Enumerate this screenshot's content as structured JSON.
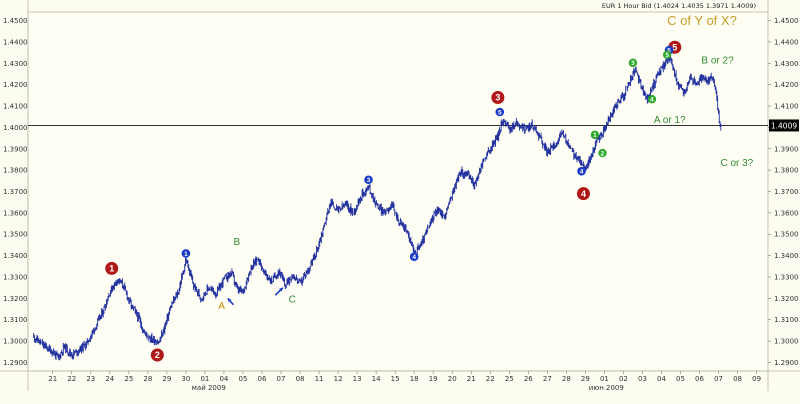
{
  "header": {
    "symbol": "EUR",
    "timeframe": "1 Hour",
    "side": "Bid",
    "ohlc": "(1.4024 1.4035 1.3971 1.4009)"
  },
  "chart_data": {
    "type": "candlestick-hourly",
    "ylim": [
      1.286,
      1.454
    ],
    "y_ticks": [
      "1.4500",
      "1.4400",
      "1.4300",
      "1.4200",
      "1.4100",
      "1.4000",
      "1.3900",
      "1.3800",
      "1.3700",
      "1.3600",
      "1.3500",
      "1.3400",
      "1.3300",
      "1.3200",
      "1.3100",
      "1.3000",
      "1.2900"
    ],
    "y_tick_values": [
      1.45,
      1.44,
      1.43,
      1.42,
      1.41,
      1.4,
      1.39,
      1.38,
      1.37,
      1.36,
      1.35,
      1.34,
      1.33,
      1.32,
      1.31,
      1.3,
      1.29
    ],
    "x_ticks": [
      "21",
      "22",
      "23",
      "24",
      "25",
      "28",
      "29",
      "30",
      "01",
      "04",
      "05",
      "06",
      "07",
      "08",
      "11",
      "12",
      "13",
      "14",
      "15",
      "18",
      "19",
      "20",
      "21",
      "22",
      "25",
      "26",
      "27",
      "28",
      "29",
      "01",
      "02",
      "03",
      "04",
      "05",
      "06",
      "07",
      "08",
      "09"
    ],
    "x_tick_days": [
      0,
      1,
      2,
      3,
      4,
      5,
      6,
      7,
      8,
      9,
      10,
      11,
      12,
      13,
      14,
      15,
      16,
      17,
      18,
      19,
      20,
      21,
      22,
      23,
      24,
      25,
      26,
      27,
      28,
      29,
      30,
      31,
      32,
      33,
      34,
      35,
      36,
      37
    ],
    "month_labels": [
      {
        "text": "май 2009",
        "day": 8.2
      },
      {
        "text": "июн 2009",
        "day": 29.1
      }
    ],
    "current_price": 1.4009,
    "current_price_label": "1.4009",
    "price_path": [
      [
        -1.0,
        1.302
      ],
      [
        -0.5,
        1.298
      ],
      [
        0.0,
        1.295
      ],
      [
        0.3,
        1.292
      ],
      [
        0.6,
        1.2975
      ],
      [
        1.0,
        1.2935
      ],
      [
        1.4,
        1.296
      ],
      [
        1.8,
        1.299
      ],
      [
        2.2,
        1.306
      ],
      [
        2.6,
        1.313
      ],
      [
        3.0,
        1.323
      ],
      [
        3.4,
        1.329
      ],
      [
        3.7,
        1.326
      ],
      [
        4.1,
        1.317
      ],
      [
        4.5,
        1.311
      ],
      [
        4.8,
        1.304
      ],
      [
        5.2,
        1.301
      ],
      [
        5.6,
        1.2995
      ],
      [
        5.9,
        1.307
      ],
      [
        6.2,
        1.316
      ],
      [
        6.6,
        1.323
      ],
      [
        7.0,
        1.338
      ],
      [
        7.4,
        1.326
      ],
      [
        7.8,
        1.32
      ],
      [
        8.2,
        1.325
      ],
      [
        8.6,
        1.322
      ],
      [
        9.0,
        1.329
      ],
      [
        9.4,
        1.332
      ],
      [
        9.7,
        1.324
      ],
      [
        10.0,
        1.323
      ],
      [
        10.4,
        1.334
      ],
      [
        10.8,
        1.339
      ],
      [
        11.1,
        1.332
      ],
      [
        11.5,
        1.328
      ],
      [
        11.9,
        1.333
      ],
      [
        12.2,
        1.326
      ],
      [
        12.6,
        1.331
      ],
      [
        13.0,
        1.327
      ],
      [
        13.4,
        1.333
      ],
      [
        13.8,
        1.34
      ],
      [
        14.2,
        1.352
      ],
      [
        14.6,
        1.365
      ],
      [
        15.0,
        1.361
      ],
      [
        15.4,
        1.364
      ],
      [
        15.8,
        1.36
      ],
      [
        16.2,
        1.368
      ],
      [
        16.6,
        1.372
      ],
      [
        17.0,
        1.364
      ],
      [
        17.4,
        1.36
      ],
      [
        17.8,
        1.364
      ],
      [
        18.2,
        1.356
      ],
      [
        18.6,
        1.352
      ],
      [
        19.0,
        1.341
      ],
      [
        19.4,
        1.346
      ],
      [
        19.8,
        1.354
      ],
      [
        20.2,
        1.362
      ],
      [
        20.6,
        1.358
      ],
      [
        21.0,
        1.369
      ],
      [
        21.4,
        1.379
      ],
      [
        21.8,
        1.378
      ],
      [
        22.2,
        1.373
      ],
      [
        22.6,
        1.384
      ],
      [
        23.0,
        1.39
      ],
      [
        23.4,
        1.396
      ],
      [
        23.7,
        1.404
      ],
      [
        24.0,
        1.399
      ],
      [
        24.4,
        1.402
      ],
      [
        24.8,
        1.399
      ],
      [
        25.2,
        1.401
      ],
      [
        25.6,
        1.396
      ],
      [
        26.0,
        1.388
      ],
      [
        26.4,
        1.392
      ],
      [
        26.8,
        1.397
      ],
      [
        27.2,
        1.39
      ],
      [
        27.6,
        1.385
      ],
      [
        28.0,
        1.381
      ],
      [
        28.3,
        1.386
      ],
      [
        28.6,
        1.394
      ],
      [
        28.9,
        1.397
      ],
      [
        29.2,
        1.403
      ],
      [
        29.6,
        1.41
      ],
      [
        30.0,
        1.415
      ],
      [
        30.3,
        1.421
      ],
      [
        30.6,
        1.427
      ],
      [
        30.9,
        1.42
      ],
      [
        31.2,
        1.413
      ],
      [
        31.5,
        1.418
      ],
      [
        31.8,
        1.425
      ],
      [
        32.1,
        1.429
      ],
      [
        32.4,
        1.433
      ],
      [
        32.6,
        1.428
      ],
      [
        32.9,
        1.419
      ],
      [
        33.2,
        1.416
      ],
      [
        33.5,
        1.424
      ],
      [
        33.8,
        1.42
      ],
      [
        34.1,
        1.423
      ],
      [
        34.4,
        1.421
      ],
      [
        34.7,
        1.424
      ],
      [
        34.9,
        1.413
      ],
      [
        35.0,
        1.406
      ],
      [
        35.1,
        1.398
      ],
      [
        35.15,
        1.4009
      ]
    ],
    "labels_red": [
      {
        "text": "1",
        "day": 3.1,
        "price": 1.334
      },
      {
        "text": "2",
        "day": 5.5,
        "price": 1.2935
      },
      {
        "text": "3",
        "day": 23.4,
        "price": 1.414
      },
      {
        "text": "4",
        "day": 27.9,
        "price": 1.369
      },
      {
        "text": "5",
        "day": 32.7,
        "price": 1.4375
      }
    ],
    "labels_blue": [
      {
        "text": "1",
        "day": 7.0,
        "price": 1.341
      },
      {
        "text": "3",
        "day": 16.6,
        "price": 1.3755
      },
      {
        "text": "4",
        "day": 19.0,
        "price": 1.3395
      },
      {
        "text": "5",
        "day": 23.5,
        "price": 1.4072
      },
      {
        "text": "4",
        "day": 27.8,
        "price": 1.3795
      },
      {
        "text": "5",
        "day": 32.4,
        "price": 1.4362
      }
    ],
    "labels_green": [
      {
        "text": "1",
        "day": 28.5,
        "price": 1.3965
      },
      {
        "text": "2",
        "day": 28.9,
        "price": 1.388
      },
      {
        "text": "3",
        "day": 30.5,
        "price": 1.4302
      },
      {
        "text": "4",
        "day": 31.5,
        "price": 1.4132
      },
      {
        "text": "5",
        "day": 32.3,
        "price": 1.434
      }
    ],
    "text_annotations": [
      {
        "text": "C of Y of X?",
        "day": 32.3,
        "price": 1.448,
        "color": "#c8a028",
        "size": 13
      },
      {
        "text": "B or 2?",
        "day": 34.1,
        "price": 1.43,
        "color": "#2f8a2f",
        "size": 10
      },
      {
        "text": "A or 1?",
        "day": 31.6,
        "price": 1.402,
        "color": "#2f8a2f",
        "size": 10
      },
      {
        "text": "C or 3?",
        "day": 35.1,
        "price": 1.382,
        "color": "#2f8a2f",
        "size": 10
      },
      {
        "text": "B",
        "day": 9.5,
        "price": 1.345,
        "color": "#2f8a2f",
        "size": 10
      },
      {
        "text": "A",
        "day": 8.7,
        "price": 1.315,
        "color": "#d08c00",
        "size": 10
      },
      {
        "text": "C",
        "day": 12.4,
        "price": 1.318,
        "color": "#2f8a2f",
        "size": 10
      }
    ],
    "arrows": [
      {
        "from": [
          9.5,
          1.317
        ],
        "to": [
          9.2,
          1.32
        ]
      },
      {
        "from": [
          11.7,
          1.3215
        ],
        "to": [
          12.1,
          1.325
        ]
      }
    ]
  }
}
